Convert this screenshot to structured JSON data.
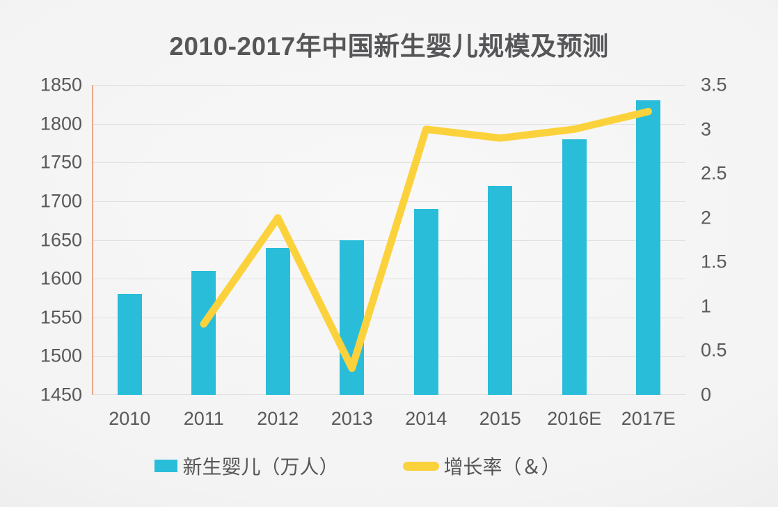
{
  "title": "2010-2017年中国新生婴儿规模及预测",
  "colors": {
    "bar": "#29bdda",
    "line": "#fbd23c",
    "left_axis_line": "#e8a98b",
    "gridline": "#e0e0e0",
    "axis_text": "#595959",
    "title_text": "#565659"
  },
  "legend": {
    "items": [
      {
        "label": "新生婴儿（万人）",
        "swatch": "bar"
      },
      {
        "label": "增长率（＆）",
        "swatch": "line"
      }
    ]
  },
  "chart_data": {
    "type": "bar+line",
    "title": "2010-2017年中国新生婴儿规模及预测",
    "categories": [
      "2010",
      "2011",
      "2012",
      "2013",
      "2014",
      "2015",
      "2016E",
      "2017E"
    ],
    "series": [
      {
        "name": "新生婴儿（万人）",
        "type": "bar",
        "axis": "left",
        "values": [
          1580,
          1610,
          1640,
          1650,
          1690,
          1720,
          1780,
          1830
        ]
      },
      {
        "name": "增长率（＆）",
        "type": "line",
        "axis": "right",
        "values": [
          null,
          0.8,
          2.0,
          0.3,
          3.0,
          2.9,
          3.0,
          3.2
        ]
      }
    ],
    "left_axis": {
      "min": 1450,
      "max": 1850,
      "step": 50,
      "ticks": [
        "1850",
        "1800",
        "1750",
        "1700",
        "1650",
        "1600",
        "1550",
        "1500",
        "1450"
      ]
    },
    "right_axis": {
      "min": 0,
      "max": 3.5,
      "step": 0.5,
      "ticks": [
        "3.5",
        "3",
        "2.5",
        "2",
        "1.5",
        "1",
        "0.5",
        "0"
      ]
    },
    "grid": true,
    "legend_position": "bottom"
  }
}
